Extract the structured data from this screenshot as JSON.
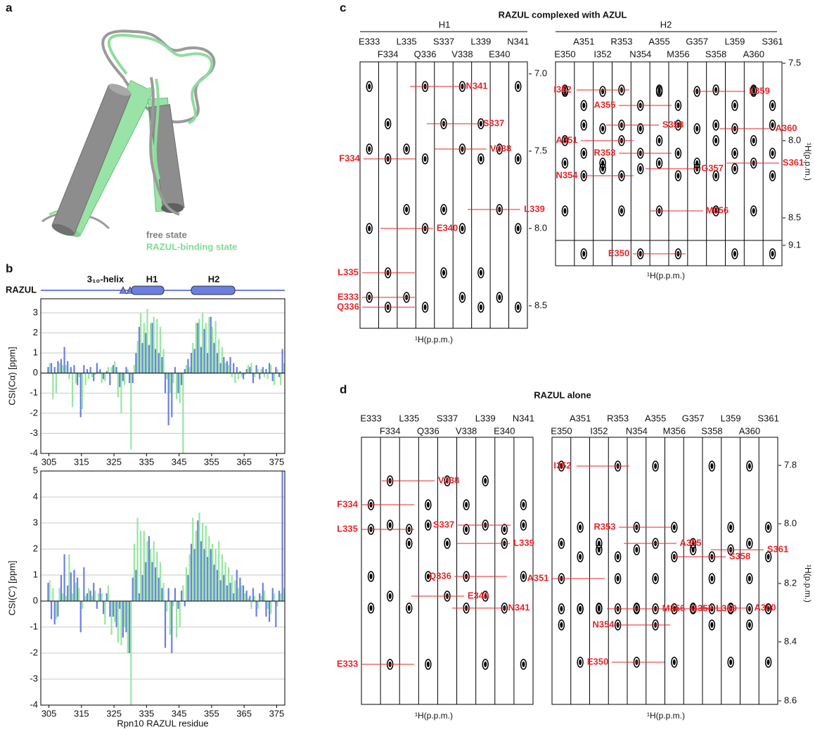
{
  "panel_labels": [
    "a",
    "b",
    "c",
    "d"
  ],
  "panel_a": {
    "legend": [
      "free state",
      "RAZUL-binding state"
    ]
  },
  "panel_b": {
    "track_label": "RAZUL",
    "elements": [
      "3₁₀-helix",
      "H1",
      "H2"
    ]
  },
  "chart_data": [
    {
      "type": "bar",
      "ylabel": "CSI(Cα) [ppm]",
      "x": [
        305,
        306,
        307,
        308,
        309,
        310,
        311,
        312,
        313,
        314,
        315,
        316,
        317,
        318,
        319,
        320,
        321,
        322,
        323,
        324,
        325,
        326,
        327,
        328,
        329,
        330,
        331,
        332,
        333,
        334,
        335,
        336,
        337,
        338,
        339,
        340,
        341,
        342,
        343,
        344,
        345,
        346,
        347,
        348,
        349,
        350,
        351,
        352,
        353,
        354,
        355,
        356,
        357,
        358,
        359,
        360,
        361,
        362,
        363,
        364,
        365,
        366,
        367,
        368,
        369,
        370,
        371,
        372,
        373,
        374,
        375,
        376,
        377
      ],
      "series": [
        {
          "color": "#6b7fe3",
          "values": [
            0.3,
            0.5,
            0.3,
            0.6,
            0.7,
            1.3,
            0.6,
            0.3,
            0.4,
            -0.6,
            -2.2,
            0.4,
            0.2,
            0.3,
            -0.4,
            0.5,
            0.2,
            -0.3,
            0.1,
            -0.6,
            0.4,
            0.3,
            -0.7,
            -0.4,
            0.3,
            -0.5,
            -0.5,
            1.0,
            2.3,
            1.5,
            2.0,
            1.4,
            2.5,
            1.2,
            1.0,
            0.8,
            -1.0,
            -2.6,
            -2.2,
            0.3,
            -1.0,
            -0.6,
            0.2,
            0.7,
            1.0,
            1.2,
            2.5,
            1.3,
            2.2,
            1.0,
            2.8,
            1.5,
            1.0,
            0.5,
            0.8,
            0.6,
            0.8,
            0.5,
            0.3,
            0.1,
            -0.3,
            0.2,
            0.3,
            -0.5,
            0.4,
            -0.3,
            0.3,
            0.2,
            0.5,
            -0.4,
            0.3,
            -0.2,
            1.2
          ]
        },
        {
          "color": "#97e6a2",
          "values": [
            0.5,
            -1.3,
            -1.0,
            0.5,
            0.4,
            0.4,
            -0.3,
            -1.7,
            -0.5,
            -0.2,
            -1.8,
            -0.6,
            -0.3,
            -0.2,
            -0.1,
            0.1,
            -0.5,
            -0.4,
            0.3,
            0.3,
            0.6,
            -1.2,
            -2.0,
            -0.6,
            0.2,
            -3.8,
            0.4,
            1.6,
            3.0,
            2.5,
            3.2,
            2.5,
            2.8,
            2.7,
            2.3,
            1.2,
            -0.3,
            -1.0,
            -0.5,
            -1.3,
            -1.5,
            -4.0,
            0.4,
            0.3,
            1.5,
            2.5,
            2.7,
            3.0,
            2.5,
            2.8,
            2.3,
            2.6,
            1.7,
            1.3,
            0.5,
            0.4,
            -0.2,
            -0.5,
            -0.3,
            -0.2,
            -0.1,
            0.4,
            0.5,
            -0.2,
            0.2,
            0.2,
            -0.2,
            -0.3,
            0.4,
            -0.6,
            0.2,
            -0.6,
            0.5
          ]
        }
      ],
      "xlim": [
        302.5,
        377.5
      ],
      "xticks": [
        305,
        315,
        325,
        335,
        345,
        355,
        365,
        375
      ],
      "ylim": [
        -4,
        3.7
      ],
      "yticks": [
        -4,
        -3,
        -2,
        -1,
        0,
        1,
        2,
        3
      ],
      "grid": true
    },
    {
      "type": "bar",
      "ylabel": "CSI(C') [ppm]",
      "xlabel": "Rpn10 RAZUL residue",
      "x": [
        305,
        306,
        307,
        308,
        309,
        310,
        311,
        312,
        313,
        314,
        315,
        316,
        317,
        318,
        319,
        320,
        321,
        322,
        323,
        324,
        325,
        326,
        327,
        328,
        329,
        330,
        331,
        332,
        333,
        334,
        335,
        336,
        337,
        338,
        339,
        340,
        341,
        342,
        343,
        344,
        345,
        346,
        347,
        348,
        349,
        350,
        351,
        352,
        353,
        354,
        355,
        356,
        357,
        358,
        359,
        360,
        361,
        362,
        363,
        364,
        365,
        366,
        367,
        368,
        369,
        370,
        371,
        372,
        373,
        374,
        375,
        376,
        377
      ],
      "series": [
        {
          "color": "#6b7fe3",
          "values": [
            0.7,
            -0.7,
            -0.9,
            -0.6,
            1.0,
            1.8,
            0.6,
            1.1,
            1.2,
            0.9,
            -1.2,
            1.3,
            0.3,
            0.4,
            0.7,
            -0.3,
            0.5,
            -0.5,
            0.3,
            -0.6,
            -0.6,
            -1.0,
            -0.3,
            -1.4,
            -1.2,
            -2.0,
            0.9,
            1.2,
            0.3,
            1.0,
            1.5,
            2.5,
            1.5,
            1.3,
            0.9,
            0.5,
            -1.8,
            0.5,
            -2.0,
            0.5,
            -0.3,
            0.4,
            -0.2,
            1.0,
            2.2,
            2.0,
            3.1,
            2.3,
            2.0,
            1.7,
            2.0,
            1.4,
            1.2,
            0.8,
            1.0,
            0.6,
            0.7,
            0.3,
            1.2,
            0.9,
            0.6,
            0.4,
            0.2,
            0.5,
            -0.6,
            0.3,
            0.7,
            -0.6,
            -0.8,
            0.5,
            -1.0,
            0.4,
            5.0
          ]
        },
        {
          "color": "#97e6a2",
          "values": [
            0.8,
            0.5,
            -0.7,
            0.5,
            0.3,
            0.2,
            1.8,
            0.3,
            0.7,
            0.5,
            -0.3,
            0.2,
            0.5,
            0.2,
            0.4,
            0.3,
            0.3,
            -0.9,
            0.6,
            -1.3,
            -0.8,
            -1.6,
            -1.7,
            -1.0,
            -2.0,
            -4.0,
            2.2,
            3.2,
            2.7,
            2.7,
            2.3,
            2.0,
            2.3,
            1.9,
            1.5,
            0.7,
            -0.4,
            -1.3,
            -0.2,
            -1.4,
            -1.0,
            0.6,
            1.3,
            1.8,
            3.2,
            2.7,
            3.4,
            3.0,
            2.9,
            2.5,
            2.2,
            2.0,
            2.3,
            1.8,
            1.5,
            1.3,
            1.0,
            0.8,
            0.5,
            0.6,
            0.3,
            0.1,
            -0.3,
            0.2,
            -0.3,
            0.2,
            0.4,
            -0.3,
            -0.5,
            0.3,
            -0.2,
            0.3,
            0.5
          ]
        }
      ],
      "xlim": [
        302.5,
        377.5
      ],
      "xticks": [
        305,
        315,
        325,
        335,
        345,
        355,
        365,
        375
      ],
      "ylim": [
        -4,
        5
      ],
      "yticks": [
        -4,
        -3,
        -2,
        -1,
        0,
        1,
        2,
        3,
        4,
        5
      ],
      "grid": true
    }
  ],
  "panel_c": {
    "title": "RAZUL complexed with AZUL",
    "groups": [
      {
        "name": "H1",
        "strips": [
          "E333",
          "F334",
          "L335",
          "Q336",
          "S337",
          "V338",
          "L339",
          "E340",
          "N341"
        ],
        "ppm_ticks": [
          "7.0",
          "7.5",
          "8.0",
          "8.5"
        ],
        "x_axis_label": "¹H(p.p.m.)",
        "peaks": [
          "N341",
          "S337",
          "V338",
          "F334",
          "L339",
          "E340",
          "L335",
          "E333",
          "Q336"
        ]
      },
      {
        "name": "H2",
        "strips": [
          "E350",
          "A351",
          "I352",
          "R353",
          "N354",
          "A355",
          "M356",
          "G357",
          "S358",
          "L359",
          "A360",
          "S361"
        ],
        "ppm_ticks": [
          "7.5",
          "8.0",
          "8.5",
          "9.1"
        ],
        "x_axis_label": "¹H(p.p.m.)",
        "y_axis_label": "¹H(p.p.m.)",
        "peaks": [
          "I352",
          "A355",
          "L359",
          "S358",
          "A360",
          "A351",
          "R353",
          "S361",
          "N354",
          "G357",
          "M356",
          "E350"
        ]
      }
    ]
  },
  "panel_d": {
    "title": "RAZUL alone",
    "groups": [
      {
        "strips": [
          "E333",
          "F334",
          "L335",
          "Q336",
          "S337",
          "V338",
          "L339",
          "E340",
          "N341"
        ],
        "x_axis_label": "¹H(p.p.m.)",
        "peaks": [
          "F334",
          "V338",
          "L335",
          "S337",
          "L339",
          "Q336",
          "E340",
          "N341",
          "E333"
        ]
      },
      {
        "strips": [
          "E350",
          "A351",
          "I352",
          "R353",
          "N354",
          "A355",
          "M356",
          "G357",
          "S358",
          "L359",
          "A360",
          "S361"
        ],
        "ppm_ticks": [
          "7.8",
          "8.0",
          "8.2",
          "8.4",
          "8.6"
        ],
        "x_axis_label": "¹H(p.p.m.)",
        "y_axis_label": "¹H(p.p.m.)",
        "peaks": [
          "I352",
          "R353",
          "A355",
          "S358",
          "S361",
          "A351",
          "M356",
          "G357",
          "L359",
          "A360",
          "N354",
          "E350"
        ]
      }
    ]
  }
}
